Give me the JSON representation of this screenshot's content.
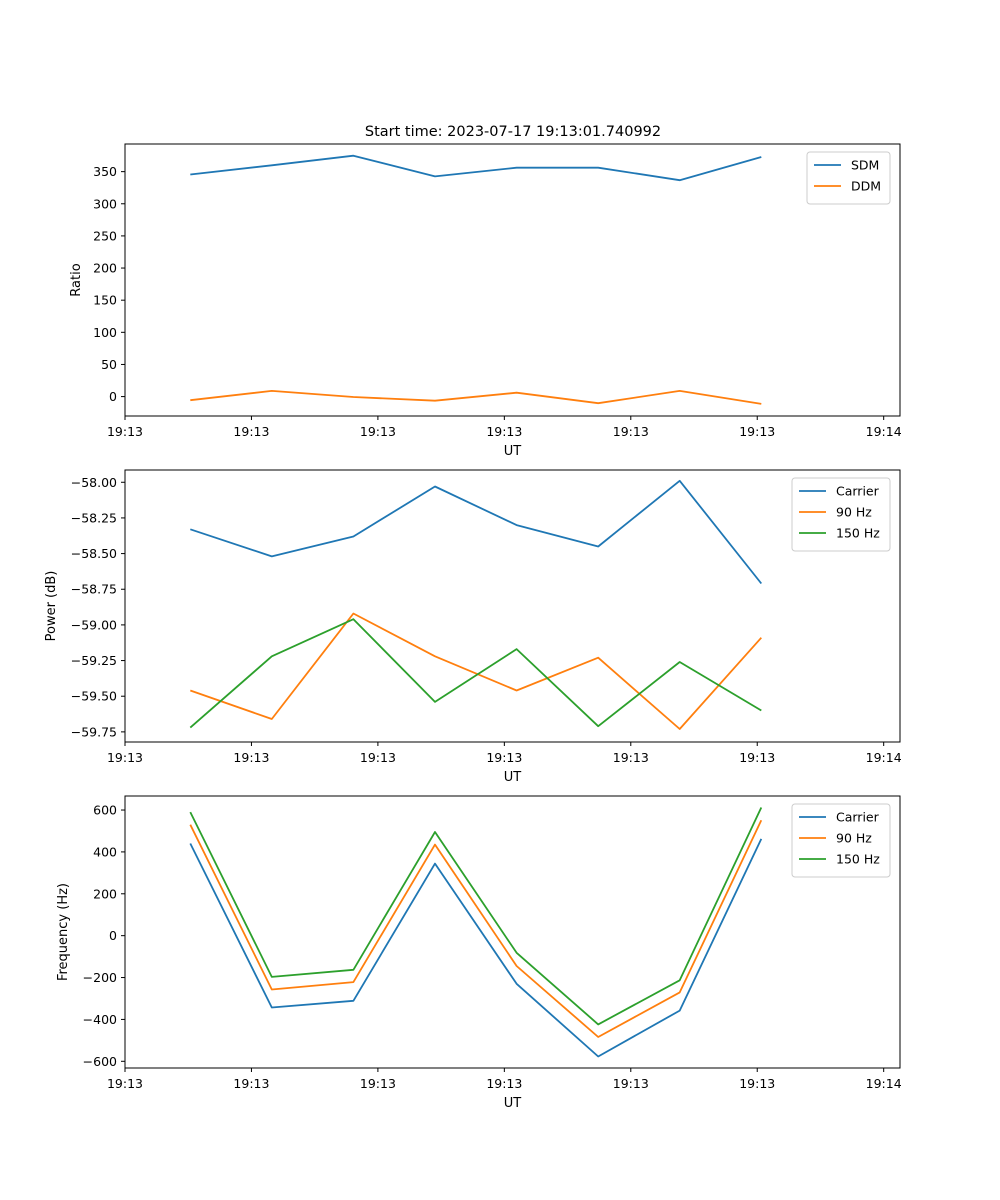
{
  "figure_title": "Start time: 2023-07-17 19:13:01.740992",
  "chart_data": [
    {
      "type": "line",
      "title": "Start time: 2023-07-17 19:13:01.740992",
      "xlabel": "UT",
      "ylabel": "Ratio",
      "x": [
        1,
        2,
        3,
        4,
        5,
        6,
        7,
        8
      ],
      "xlim": [
        0.2,
        9.7
      ],
      "xticks": [
        0.2,
        1.75,
        3.3,
        4.85,
        6.4,
        7.95,
        9.5
      ],
      "xtick_labels": [
        "19:13",
        "19:13",
        "19:13",
        "19:13",
        "19:13",
        "19:13",
        "19:14"
      ],
      "ylim": [
        -30.2,
        393
      ],
      "yticks": [
        0,
        50,
        100,
        150,
        200,
        250,
        300,
        350
      ],
      "ytick_labels": [
        "0",
        "50",
        "100",
        "150",
        "200",
        "250",
        "300",
        "350"
      ],
      "legend": "upper right",
      "series": [
        {
          "name": "SDM",
          "color": "#1f77b4",
          "values": [
            345.5,
            359.9,
            374.8,
            342.6,
            356.1,
            356.1,
            336.7,
            372.7
          ]
        },
        {
          "name": "DDM",
          "color": "#ff7f0e",
          "values": [
            -5.6,
            8.9,
            -0.7,
            -6.4,
            6.1,
            -10.3,
            8.9,
            -11.4
          ]
        }
      ]
    },
    {
      "type": "line",
      "title": "",
      "xlabel": "UT",
      "ylabel": "Power (dB)",
      "x": [
        1,
        2,
        3,
        4,
        5,
        6,
        7,
        8
      ],
      "xlim": [
        0.2,
        9.7
      ],
      "xticks": [
        0.2,
        1.75,
        3.3,
        4.85,
        6.4,
        7.95,
        9.5
      ],
      "xtick_labels": [
        "19:13",
        "19:13",
        "19:13",
        "19:13",
        "19:13",
        "19:13",
        "19:14"
      ],
      "ylim": [
        -59.821,
        -57.914
      ],
      "yticks": [
        -59.75,
        -59.5,
        -59.25,
        -59.0,
        -58.75,
        -58.5,
        -58.25,
        -58.0
      ],
      "ytick_labels": [
        "−59.75",
        "−59.50",
        "−59.25",
        "−59.00",
        "−58.75",
        "−58.50",
        "−58.25",
        "−58.00"
      ],
      "legend": "upper right",
      "series": [
        {
          "name": "Carrier",
          "color": "#1f77b4",
          "values": [
            -58.33,
            -58.52,
            -58.38,
            -58.03,
            -58.3,
            -58.45,
            -57.99,
            -58.71
          ]
        },
        {
          "name": "90 Hz",
          "color": "#ff7f0e",
          "values": [
            -59.46,
            -59.66,
            -58.92,
            -59.22,
            -59.46,
            -59.23,
            -59.73,
            -59.09
          ]
        },
        {
          "name": "150 Hz",
          "color": "#2ca02c",
          "values": [
            -59.72,
            -59.22,
            -58.96,
            -59.54,
            -59.17,
            -59.71,
            -59.26,
            -59.6
          ]
        }
      ]
    },
    {
      "type": "line",
      "title": "",
      "xlabel": "UT",
      "ylabel": "Frequency (Hz)",
      "x": [
        1,
        2,
        3,
        4,
        5,
        6,
        7,
        8
      ],
      "xlim": [
        0.2,
        9.7
      ],
      "xticks": [
        0.2,
        1.75,
        3.3,
        4.85,
        6.4,
        7.95,
        9.5
      ],
      "xtick_labels": [
        "19:13",
        "19:13",
        "19:13",
        "19:13",
        "19:13",
        "19:13",
        "19:14"
      ],
      "ylim": [
        -632,
        667
      ],
      "yticks": [
        -600,
        -400,
        -200,
        0,
        200,
        400,
        600
      ],
      "ytick_labels": [
        "−600",
        "−400",
        "−200",
        "0",
        "200",
        "400",
        "600"
      ],
      "legend": "upper right",
      "series": [
        {
          "name": "Carrier",
          "color": "#1f77b4",
          "values": [
            440,
            -343,
            -311,
            344,
            -230,
            -577,
            -358,
            462
          ]
        },
        {
          "name": "90 Hz",
          "color": "#ff7f0e",
          "values": [
            530,
            -257,
            -222,
            435,
            -145,
            -484,
            -271,
            551
          ]
        },
        {
          "name": "150 Hz",
          "color": "#2ca02c",
          "values": [
            590,
            -197,
            -163,
            495,
            -82,
            -424,
            -213,
            612
          ]
        }
      ]
    }
  ]
}
